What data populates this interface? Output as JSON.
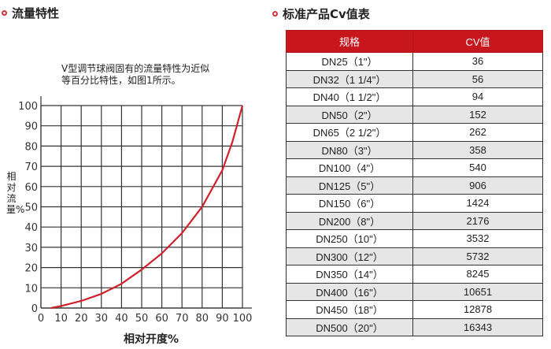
{
  "left_section": {
    "title": "流量特性",
    "description_line1": "V型调节球阀固有的流量特性为近似",
    "description_line2": "等百分比特性，如图1所示。"
  },
  "right_section": {
    "title": "标准产品Cv值表"
  },
  "accent_color": "#c8161d",
  "table": {
    "headers": [
      "规格",
      "CV值"
    ],
    "rows": [
      [
        "DN25（1\"）",
        "36"
      ],
      [
        "DN32（1 1/4\"）",
        "56"
      ],
      [
        "DN40（1 1/2\"）",
        "94"
      ],
      [
        "DN50（2\"）",
        "152"
      ],
      [
        "DN65（2 1/2\"）",
        "262"
      ],
      [
        "DN80（3\"）",
        "358"
      ],
      [
        "DN100（4\"）",
        "540"
      ],
      [
        "DN125（5\"）",
        "906"
      ],
      [
        "DN150（6\"）",
        "1424"
      ],
      [
        "DN200（8\"）",
        "2176"
      ],
      [
        "DN250（10\"）",
        "3532"
      ],
      [
        "DN300（12\"）",
        "5732"
      ],
      [
        "DN350（14\"）",
        "8245"
      ],
      [
        "DN400（16\"）",
        "10651"
      ],
      [
        "DN450（18\"）",
        "12878"
      ],
      [
        "DN500（20\"）",
        "16343"
      ]
    ]
  },
  "chart_data": {
    "type": "line",
    "xlabel": "相对开度%",
    "ylabel": "相对流量%",
    "xlim": [
      0,
      100
    ],
    "ylim": [
      0,
      100
    ],
    "xticks": [
      0,
      10,
      20,
      30,
      40,
      50,
      60,
      70,
      80,
      90,
      100
    ],
    "yticks": [
      0,
      10,
      20,
      30,
      40,
      50,
      60,
      70,
      80,
      90,
      100
    ],
    "grid": true,
    "line_color": "#d0202a",
    "x": [
      5,
      10,
      20,
      30,
      40,
      50,
      60,
      70,
      80,
      90,
      95,
      100
    ],
    "y": [
      0,
      1,
      3.5,
      7,
      12,
      19,
      27,
      37,
      50,
      68,
      82,
      100
    ]
  }
}
